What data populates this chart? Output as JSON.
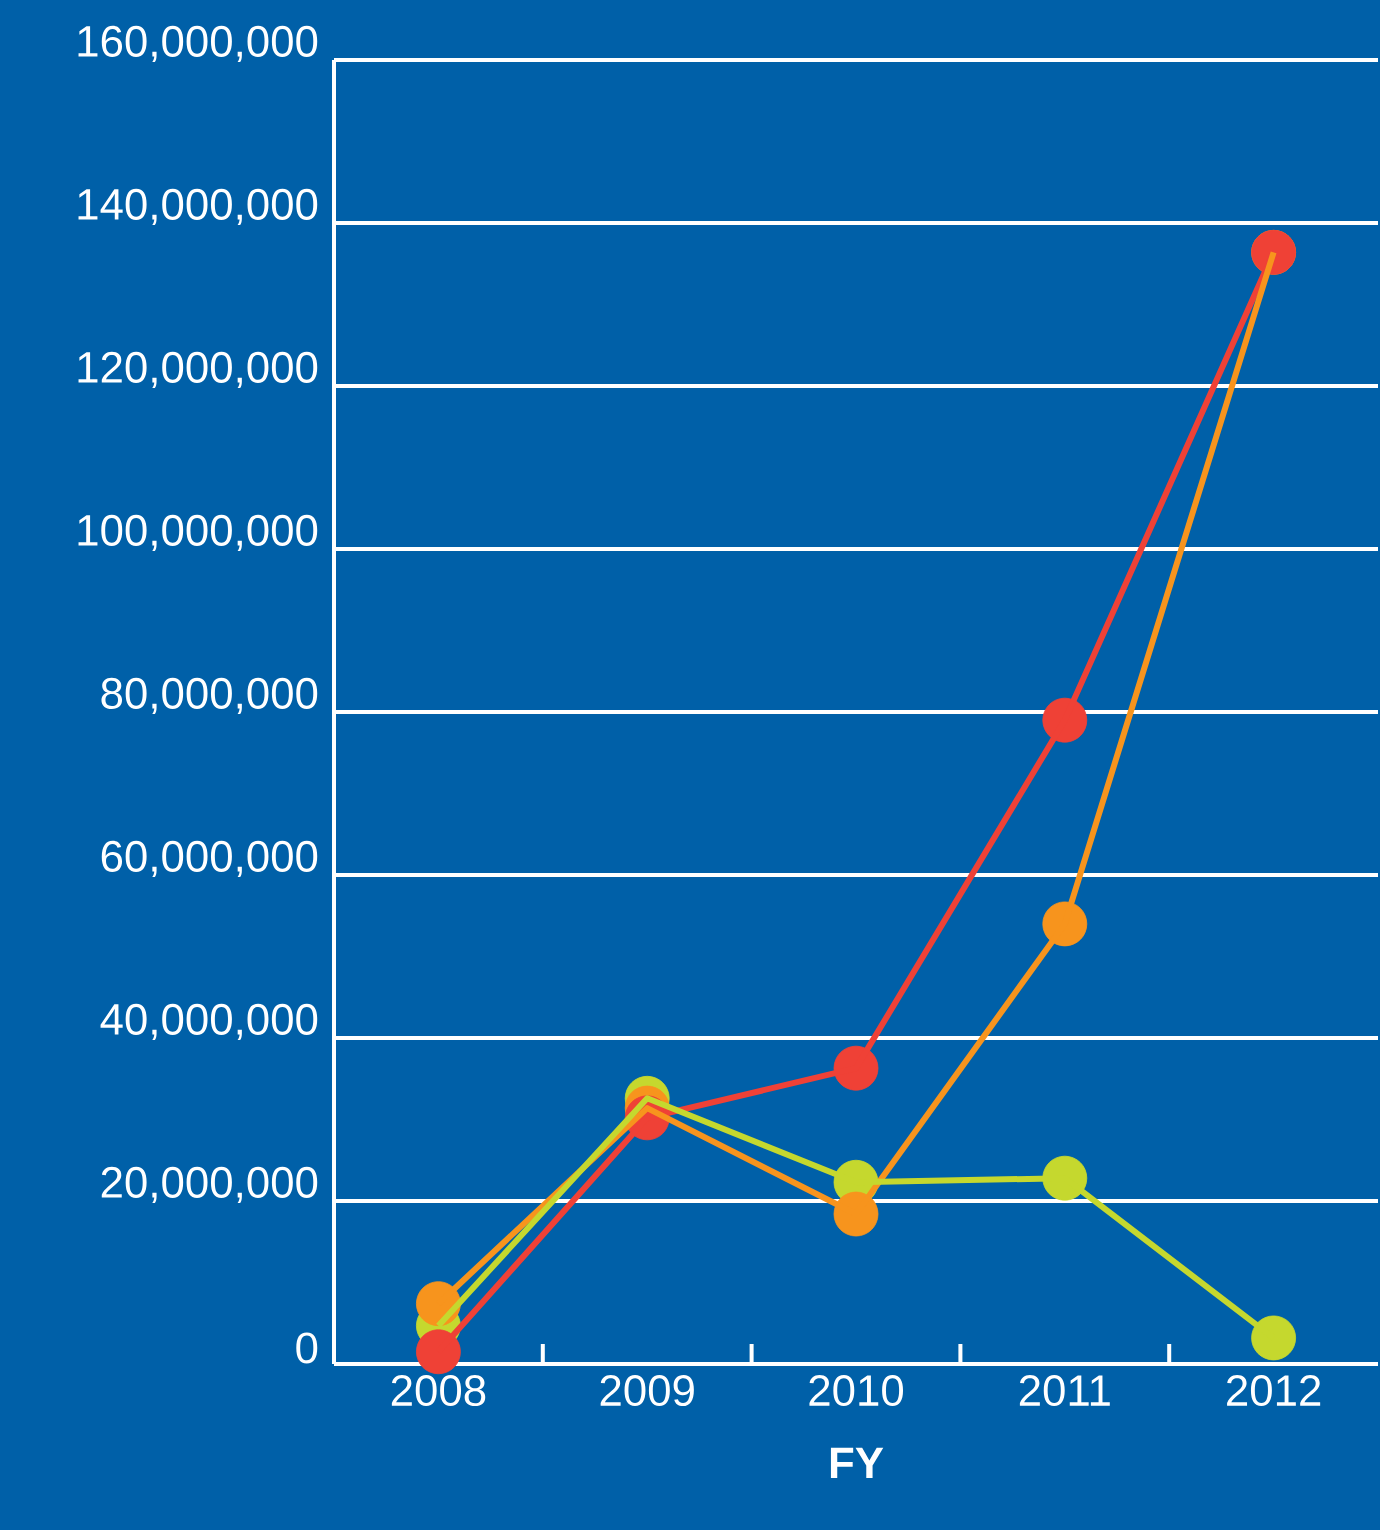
{
  "chart_data": {
    "type": "line",
    "xlabel": "FY",
    "categories": [
      "2008",
      "2009",
      "2010",
      "2011",
      "2012"
    ],
    "series": [
      {
        "color": "#c5d82e",
        "values": [
          4700000,
          32600000,
          22300000,
          22800000,
          3200000
        ]
      },
      {
        "color": "#f7941d",
        "values": [
          7400000,
          31400000,
          18400000,
          54000000,
          136400000
        ]
      },
      {
        "color": "#ef4136",
        "values": [
          1500000,
          30200000,
          36300000,
          79000000,
          136400000
        ]
      }
    ],
    "ylim": [
      0,
      160000000
    ],
    "yticks": [
      0,
      {
        "value": 20000000,
        "label": "20,000,000"
      },
      {
        "value": 40000000,
        "label": "40,000,000"
      },
      {
        "value": 60000000,
        "label": "60,000,000"
      },
      {
        "value": 80000000,
        "label": "80,000,000"
      },
      {
        "value": 100000000,
        "label": "100,000,000"
      },
      {
        "value": 120000000,
        "label": "120,000,000"
      },
      {
        "value": 140000000,
        "label": "140,000,000"
      },
      {
        "value": 160000000,
        "label": "160,000,000"
      }
    ],
    "grid": "y",
    "marker": "circle",
    "line_style": "solid"
  }
}
